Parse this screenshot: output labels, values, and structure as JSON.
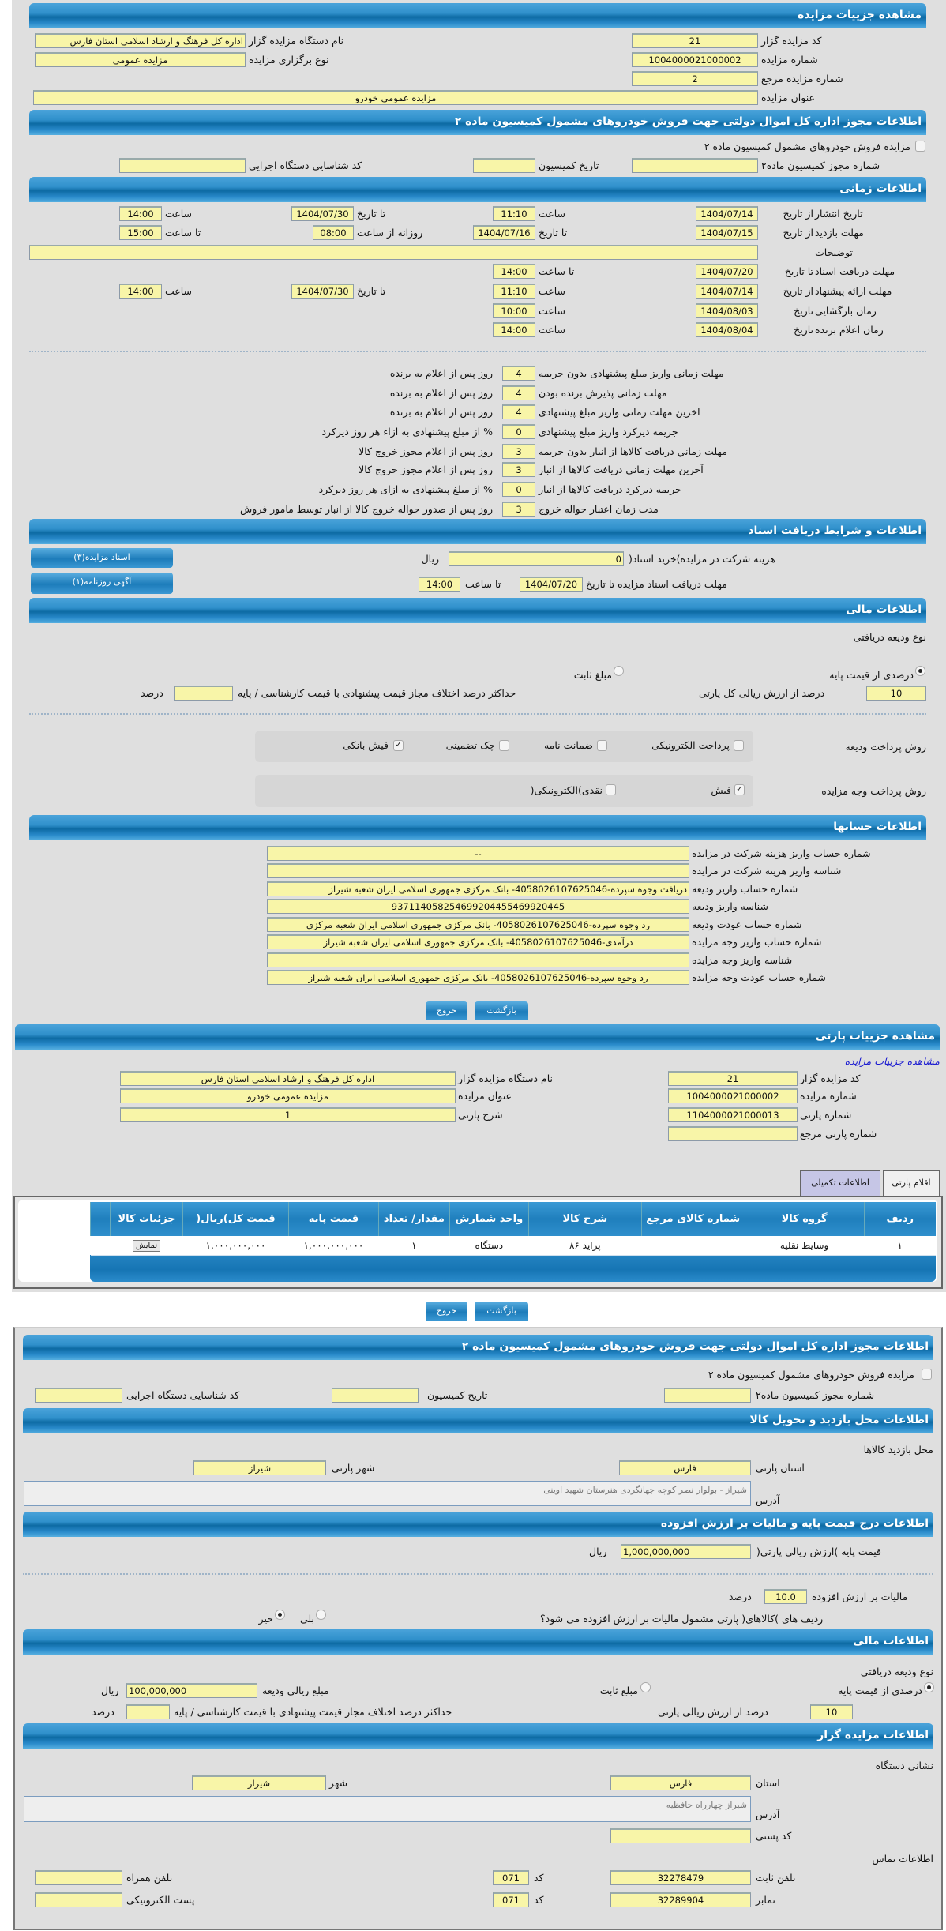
{
  "auction": {
    "title": "مشاهده جزییات مزایده",
    "code_label": "کد مزایده گزار",
    "code": "21",
    "org_label": "نام دستگاه مزایده گزار",
    "org": "اداره کل فرهنگ و ارشاد اسلامی استان فارس",
    "number_label": "شماره مزایده",
    "number": "1004000021000002",
    "type_label": "نوع برگزاری مزایده",
    "type": "مزایده عمومی",
    "ref_label": "شماره مزایده مرجع",
    "ref": "2",
    "subject_label": "عنوان مزایده",
    "subject": "مزایده عمومی خودرو"
  },
  "license": {
    "title": "اطلاعات مجوز اداره کل اموال دولتی جهت فروش خودروهای مشمول کمیسیون ماده ۲",
    "checkbox_label": "مزایده فروش خودروهای مشمول کمیسیون ماده ۲",
    "checked": false,
    "permit_label": "شماره مجوز کمیسیون ماده۲",
    "permit": "",
    "date_label": "تاریخ کمیسیون",
    "date": "",
    "exec_label": "کد شناسایی دستگاه اجرایی",
    "exec": ""
  },
  "timing": {
    "title": "اطلاعات زمانی",
    "from_date": "از تاریخ",
    "to_date": "تا تاریخ",
    "date": "تاریخ",
    "hour": "ساعت",
    "to_hour": "تا ساعت",
    "daily_from": "روزانه از ساعت",
    "publish_label": "تاریخ انتشار",
    "publish_from": "1404/07/14",
    "publish_from_time": "11:10",
    "publish_to": "1404/07/30",
    "publish_to_time": "14:00",
    "visit_label": "مهلت بازدید",
    "visit_from": "1404/07/15",
    "visit_to": "1404/07/16",
    "visit_daily_from": "08:00",
    "visit_daily_to": "15:00",
    "notes_label": "توضیحات",
    "notes": "",
    "docs_label": "مهلت دریافت اسناد",
    "docs_to": "1404/07/20",
    "docs_to_time": "14:00",
    "offer_label": "مهلت ارائه پیشنهاد",
    "offer_from": "1404/07/14",
    "offer_from_time": "11:10",
    "offer_to": "1404/07/30",
    "offer_to_time": "14:00",
    "opening_label": "زمان بازگشایی",
    "opening_date": "1404/08/03",
    "opening_time": "10:00",
    "winner_label": "زمان اعلام برنده",
    "winner_date": "1404/08/04",
    "winner_time": "14:00"
  },
  "deadlines": [
    {
      "label": "مهلت زمانی واریز مبلغ پیشنهادی بدون جریمه",
      "value": "4",
      "suffix": "روز پس از اعلام به برنده"
    },
    {
      "label": "مهلت زمانی پذیرش برنده بودن",
      "value": "4",
      "suffix": "روز پس از اعلام به برنده"
    },
    {
      "label": "اخرین مهلت زمانی واریز مبلغ پیشنهادی",
      "value": "4",
      "suffix": "روز پس از اعلام به برنده"
    },
    {
      "label": "جریمه دیرکرد واریز مبلغ پیشنهادی",
      "value": "0",
      "suffix": "% از مبلغ پیشنهادی به ازاء هر روز دیرکرد"
    },
    {
      "label": "مهلت زماني دريافت كالاها از انبار بدون جريمه",
      "value": "3",
      "suffix": "روز پس از اعلام مجوز خروج کالا"
    },
    {
      "label": "آخرين مهلت زماني دريافت كالاها از انبار",
      "value": "3",
      "suffix": "روز پس از اعلام مجوز خروج کالا"
    },
    {
      "label": "جريمه ديركرد دريافت كالاها از انبار",
      "value": "0",
      "suffix": "% از مبلغ پیشنهادی به ازای هر روز دیرکرد"
    },
    {
      "label": "مدت زمان اعتبار حواله خروج",
      "value": "3",
      "suffix": "روز پس از صدور حواله خروج کالا از انبار توسط مامور فروش"
    }
  ],
  "documents": {
    "title": "اطلاعات و شرایط دریافت اسناد",
    "fee_label": "هزینه شرکت در مزایده)خرید اسناد(",
    "fee": "0",
    "currency": "ریال",
    "deadline_label": "مهلت دریافت اسناد مزایده تا تاریخ",
    "deadline_date": "1404/07/20",
    "to_hour": "تا ساعت",
    "deadline_time": "14:00",
    "docs_button": "اسناد مزایده(۳)",
    "ad_button": "آگهی روزنامه(۱)"
  },
  "financial": {
    "title": "اطلاعات مالی",
    "deposit_type_label": "نوع ودیعه دریافتی",
    "percent_option": "درصدی از قیمت پایه",
    "fixed_option": "مبلغ ثابت",
    "selected": "percent",
    "percent": "10",
    "percent_label": "درصد از ارزش ریالی کل پارتی",
    "max_diff_label": "حداکثر درصد اختلاف مجاز قیمت پیشنهادی با قیمت کارشناسی / پایه",
    "max_diff": "",
    "percent_unit": "درصد",
    "deposit_method_label": "روش پرداخت ودیعه",
    "deposit_methods": [
      {
        "label": "پرداخت الکترونیکی",
        "checked": false
      },
      {
        "label": "ضمانت نامه",
        "checked": false
      },
      {
        "label": "چک تضمینی",
        "checked": false
      },
      {
        "label": "فیش بانکی",
        "checked": true
      }
    ],
    "payment_method_label": "روش پرداخت وجه مزایده",
    "payment_methods": [
      {
        "label": "فیش",
        "checked": true
      },
      {
        "label": "نقدی)الکترونیکی(",
        "checked": false
      }
    ]
  },
  "accounts": {
    "title": "اطلاعات حسابها",
    "rows": [
      {
        "label": "شماره حساب واریز هزینه شرکت در مزایده",
        "value": "--"
      },
      {
        "label": "شناسه واریز هزینه شرکت در مزایده",
        "value": ""
      },
      {
        "label": "شماره حساب واریز ودیعه",
        "value": "دریافت وجوه سپرده-4058026107625046- بانک مرکزی جمهوری اسلامی ایران شعبه شیراز"
      },
      {
        "label": "شناسه واریز ودیعه",
        "value": "937114058254699204455469920445"
      },
      {
        "label": "شماره حساب عودت ودیعه",
        "value": "رد وجوه سپرده-4058026107625046- بانک مرکزی جمهوری اسلامی ایران شعبه مرکزی"
      },
      {
        "label": "شماره حساب واریز وجه مزایده",
        "value": "درآمدی-4058026107625046- بانک مرکزی جمهوری اسلامی ایران شعبه شیراز"
      },
      {
        "label": "شناسه واریز وجه مزایده",
        "value": ""
      },
      {
        "label": "شماره حساب عودت وجه مزایده",
        "value": "رد وجوه سپرده-4058026107625046- بانک مرکزی جمهوری اسلامی ایران شعبه شیراز"
      }
    ]
  },
  "buttons": {
    "back": "بازگشت",
    "exit": "خروج"
  },
  "party": {
    "title": "مشاهده جزییات پارتی",
    "auction_link": "مشاهده جزییات مزایده",
    "code_label": "کد مزایده گزار",
    "code": "21",
    "org_label": "نام دستگاه مزایده گزار",
    "org": "اداره کل فرهنگ و ارشاد اسلامی استان فارس",
    "number_label": "شماره مزایده",
    "number": "1004000021000002",
    "subject_label": "عنوان مزایده",
    "subject": "مزایده عمومی خودرو",
    "party_no_label": "شماره پارتی",
    "party_no": "1104000021000013",
    "desc_label": "شرح پارتی",
    "desc": "1",
    "ref_label": "شماره پارتی مرجع",
    "ref": "",
    "tabs": [
      "اقلام پارتی",
      "اطلاعات تکمیلی"
    ],
    "columns": [
      "ردیف",
      "گروه کالا",
      "شماره کالای مرجع",
      "شرح کالا",
      "واحد شمارش",
      "مقدار/ تعداد",
      "قیمت پایه",
      "قیمت کل)ریال(",
      "جزئیات کالا"
    ],
    "rows": [
      {
        "row": "۱",
        "group": "وسایط نقلیه",
        "ref": "",
        "desc": "پراید ۸۶",
        "unit": "دستگاه",
        "qty": "۱",
        "base": "۱,۰۰۰,۰۰۰,۰۰۰",
        "total": "۱,۰۰۰,۰۰۰,۰۰۰",
        "action": "نمایش"
      }
    ]
  },
  "license2": {
    "title": "اطلاعات مجوز اداره کل اموال دولتی جهت فروش خودروهای مشمول کمیسیون ماده ۲",
    "checkbox_label": "مزایده فروش خودروهای مشمول کمیسیون ماده ۲",
    "permit_label": "شماره مجوز کمیسیون ماده۲",
    "date_label": "تاریخ کمیسیون",
    "exec_label": "کد شناسایی دستگاه اجرایی"
  },
  "visit": {
    "title": "اطلاعات محل بازدید و تحویل کالا",
    "place_label": "محل بازدید کالاها",
    "province_label": "استان پارتی",
    "province": "فارس",
    "city_label": "شهر پارتی",
    "city": "شیراز",
    "address_label": "آدرس",
    "address": "شیراز - بولوار نصر کوچه جهانگردی هنرستان شهید اوینی"
  },
  "pricing": {
    "title": "اطلاعات درج قیمت پایه و مالیات بر ارزش افزوده",
    "base_label": "قیمت پایه )ارزش ریالی پارتی(",
    "base": "1,000,000,000",
    "currency": "ریال",
    "vat_label": "مالیات بر ارزش افزوده",
    "vat": "10.0",
    "vat_unit": "درصد",
    "vat_question": "ردیف های )کالاهای( پارتی مشمول مالیات بر ارزش افزوده می شود؟",
    "yes": "بلی",
    "no": "خیر",
    "selected": "no"
  },
  "financial2": {
    "title": "اطلاعات مالی",
    "deposit_type_label": "نوع ودیعه دریافتی",
    "percent_option": "درصدی از قیمت پایه",
    "fixed_option": "مبلغ ثابت",
    "amount_label": "مبلغ ریالی ودیعه",
    "amount": "100,000,000",
    "currency": "ریال",
    "percent": "10",
    "percent_label": "درصد از ارزش ریالی پارتی",
    "max_diff_label": "حداکثر درصد اختلاف مجاز قیمت پیشنهادی با قیمت کارشناسی / پایه",
    "percent_unit": "درصد"
  },
  "auctioneer": {
    "title": "اطلاعات مزایده گزار",
    "address_section": "نشانی دستگاه",
    "province_label": "استان",
    "province": "فارس",
    "city_label": "شهر",
    "city": "شیراز",
    "address_label": "آدرس",
    "address": "شیراز چهارراه حافظیه",
    "postal_label": "کد پستی",
    "postal": "",
    "contact_section": "اطلاعات تماس",
    "phone_label": "تلفن ثابت",
    "phone": "32278479",
    "code_label": "کد",
    "phone_code": "071",
    "mobile_label": "تلفن همراه",
    "mobile": "",
    "fax_label": "نمابر",
    "fax": "32289904",
    "fax_code": "071",
    "email_label": "پست الکترونیکی",
    "email": ""
  },
  "colors": {
    "header": "#2f90cb",
    "input": "#f8f5a8",
    "panel": "#dfdfdf",
    "link": "#1a1ad0"
  }
}
